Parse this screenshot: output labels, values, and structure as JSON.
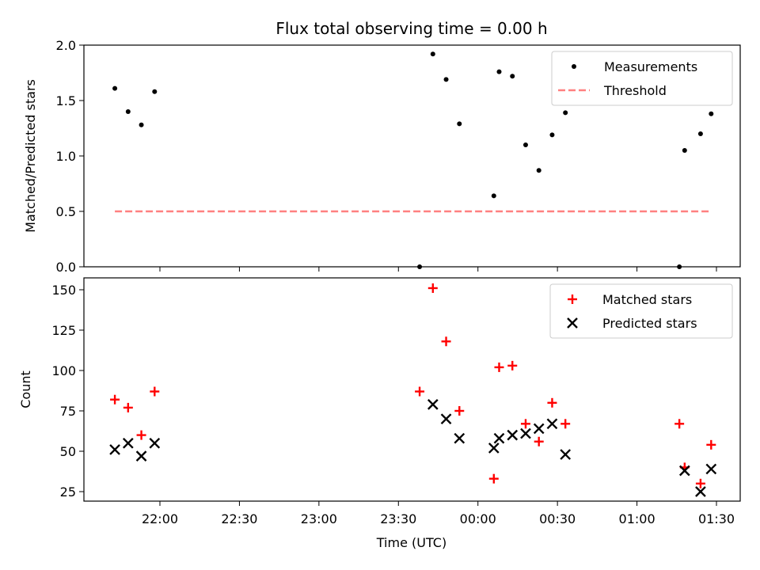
{
  "chart_data": {
    "title": "Flux total observing time = 0.00 h",
    "xlabel": "Time (UTC)",
    "x_ticks": [
      "22:00",
      "22:30",
      "23:00",
      "23:30",
      "00:00",
      "00:30",
      "01:00",
      "01:30"
    ],
    "panels": [
      {
        "type": "scatter",
        "ylabel": "Matched/Predicted stars",
        "ylim": [
          0,
          2.0
        ],
        "yticks": [
          "0.0",
          "0.5",
          "1.0",
          "1.5",
          "2.0"
        ],
        "legend_position": "top-right",
        "series": [
          {
            "name": "Measurements",
            "marker": "dot",
            "color": "#000000",
            "x": [
              "21:43",
              "21:48",
              "21:53",
              "21:58",
              "23:38",
              "23:43",
              "23:48",
              "23:53",
              "00:06",
              "00:08",
              "00:13",
              "00:18",
              "00:23",
              "00:28",
              "00:33",
              "01:16",
              "01:18",
              "01:24",
              "01:28"
            ],
            "y": [
              1.61,
              1.4,
              1.28,
              1.58,
              0.0,
              1.92,
              1.69,
              1.29,
              0.64,
              1.76,
              1.72,
              1.1,
              0.87,
              1.19,
              1.39,
              0.0,
              1.05,
              1.2,
              1.38
            ]
          },
          {
            "name": "Threshold",
            "style": "dashed",
            "color": "#ff8080",
            "x": [
              "21:43",
              "01:28"
            ],
            "y": [
              0.5,
              0.5
            ]
          }
        ]
      },
      {
        "type": "scatter",
        "ylabel": "Count",
        "ylim": [
          18,
          158
        ],
        "yticks": [
          "25",
          "50",
          "75",
          "100",
          "125",
          "150"
        ],
        "legend_position": "top-right",
        "series": [
          {
            "name": "Matched stars",
            "marker": "plus",
            "color": "#ff0000",
            "x": [
              "21:43",
              "21:48",
              "21:53",
              "21:58",
              "23:38",
              "23:43",
              "23:48",
              "23:53",
              "00:06",
              "00:08",
              "00:13",
              "00:18",
              "00:23",
              "00:28",
              "00:33",
              "01:16",
              "01:18",
              "01:24",
              "01:28"
            ],
            "y": [
              82,
              77,
              60,
              87,
              87,
              151,
              118,
              75,
              33,
              102,
              103,
              67,
              56,
              80,
              67,
              67,
              40,
              30,
              54
            ]
          },
          {
            "name": "Predicted stars",
            "marker": "x",
            "color": "#000000",
            "x": [
              "21:43",
              "21:48",
              "21:53",
              "21:58",
              "23:43",
              "23:48",
              "23:53",
              "00:06",
              "00:08",
              "00:13",
              "00:18",
              "00:23",
              "00:28",
              "00:33",
              "01:18",
              "01:24",
              "01:28"
            ],
            "y": [
              51,
              55,
              47,
              55,
              79,
              70,
              58,
              52,
              58,
              60,
              61,
              64,
              67,
              48,
              38,
              25,
              39
            ]
          }
        ]
      }
    ]
  }
}
